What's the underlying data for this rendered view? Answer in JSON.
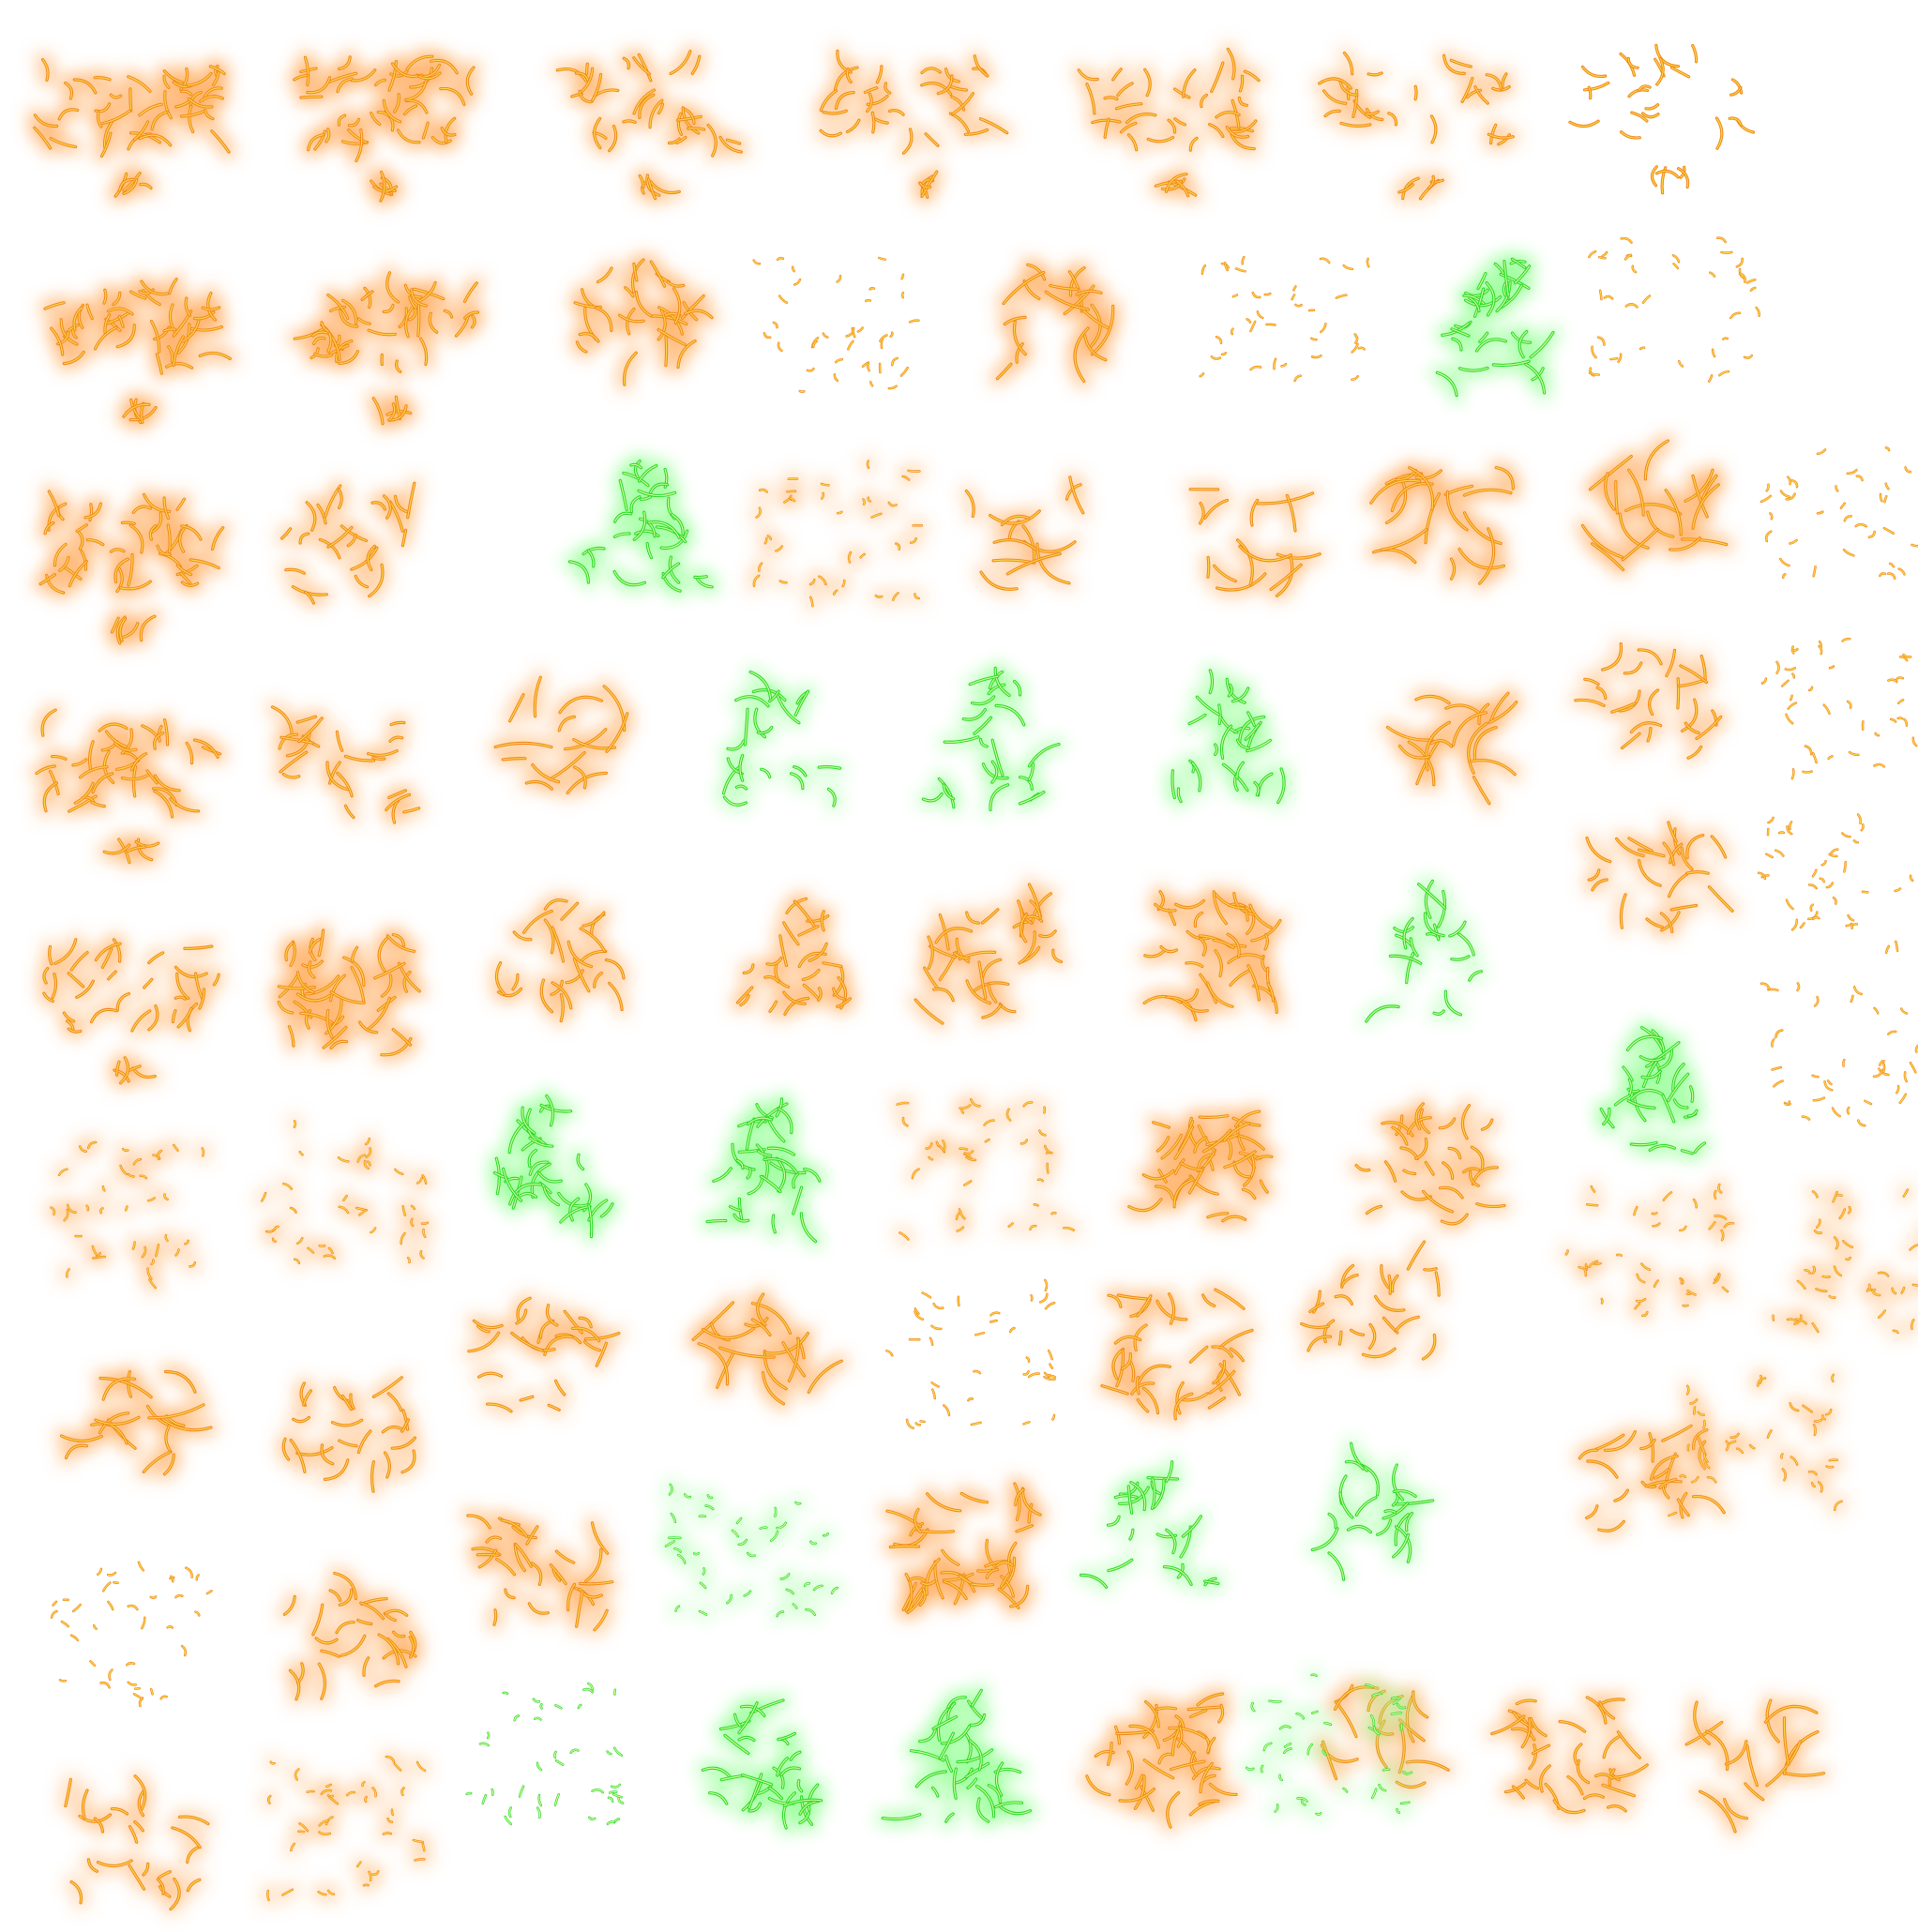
{
  "sheet": {
    "kind": "sprite-sheet",
    "description_text": "",
    "palette": {
      "orange_glow": "#ffb36b",
      "orange_core": "#f08a1c",
      "orange_highlight": "#ffd84a",
      "green_glow": "#9cff9c",
      "green_core": "#2bd92b",
      "green_highlight": "#d8ff9e",
      "background": "#ffffff"
    },
    "sprite_kinds": [
      "word_x2",
      "blob",
      "swoosh",
      "triangle",
      "dense",
      "scatter"
    ],
    "sprites": [
      {
        "kind": "word_x2",
        "color": "orange",
        "density": 1.0,
        "seed": 1
      },
      {
        "kind": "word_x2",
        "color": "orange",
        "density": 1.0,
        "seed": 2
      },
      {
        "kind": "word_x2",
        "color": "orange",
        "density": 0.6,
        "seed": 3
      },
      {
        "kind": "word_x2",
        "color": "orange",
        "density": 0.55,
        "seed": 4
      },
      {
        "kind": "word_x2",
        "color": "orange",
        "density": 0.6,
        "seed": 5
      },
      {
        "kind": "word_x2",
        "color": "orange",
        "density": 0.4,
        "seed": 6
      },
      {
        "kind": "word_x2",
        "color": "orange",
        "density": 0.25,
        "seed": 7
      },
      {
        "kind": "word_x2",
        "color": "orange",
        "density": 1.0,
        "seed": 8
      },
      {
        "kind": "word_x2",
        "color": "orange",
        "density": 1.0,
        "seed": 9
      },
      {
        "kind": "blob",
        "color": "orange",
        "density": 0.9,
        "seed": 10
      },
      {
        "kind": "scatter",
        "color": "orange",
        "density": 0.3,
        "seed": 11
      },
      {
        "kind": "swoosh",
        "color": "orange",
        "density": 1.0,
        "seed": 12
      },
      {
        "kind": "scatter",
        "color": "orange",
        "density": 0.25,
        "seed": 13
      },
      {
        "kind": "triangle",
        "color": "green",
        "density": 1.0,
        "seed": 14
      },
      {
        "kind": "scatter",
        "color": "orange",
        "density": 0.2,
        "seed": 15
      },
      {
        "kind": "word_x2",
        "color": "orange",
        "density": 1.0,
        "seed": 16
      },
      {
        "kind": "blob",
        "color": "orange",
        "density": 0.6,
        "seed": 17
      },
      {
        "kind": "triangle",
        "color": "green",
        "density": 1.0,
        "seed": 18
      },
      {
        "kind": "scatter",
        "color": "orange",
        "density": 0.35,
        "seed": 19
      },
      {
        "kind": "swoosh",
        "color": "orange",
        "density": 0.45,
        "seed": 20
      },
      {
        "kind": "swoosh",
        "color": "orange",
        "density": 0.55,
        "seed": 21
      },
      {
        "kind": "swoosh",
        "color": "orange",
        "density": 1.0,
        "seed": 22
      },
      {
        "kind": "swoosh",
        "color": "orange",
        "density": 1.0,
        "seed": 23
      },
      {
        "kind": "scatter",
        "color": "orange",
        "density": 0.2,
        "seed": 24
      },
      {
        "kind": "word_x2",
        "color": "orange",
        "density": 0.8,
        "seed": 25
      },
      {
        "kind": "blob",
        "color": "orange",
        "density": 0.6,
        "seed": 26
      },
      {
        "kind": "swoosh",
        "color": "orange",
        "density": 0.7,
        "seed": 27
      },
      {
        "kind": "triangle",
        "color": "green",
        "density": 0.45,
        "seed": 28
      },
      {
        "kind": "triangle",
        "color": "green",
        "density": 0.6,
        "seed": 29
      },
      {
        "kind": "triangle",
        "color": "green",
        "density": 0.8,
        "seed": 30
      },
      {
        "kind": "swoosh",
        "color": "orange",
        "density": 0.8,
        "seed": 31
      },
      {
        "kind": "blob",
        "color": "orange",
        "density": 0.5,
        "seed": 32
      },
      {
        "kind": "scatter",
        "color": "orange",
        "density": 0.25,
        "seed": 33
      },
      {
        "kind": "word_x2",
        "color": "orange",
        "density": 0.6,
        "seed": 34
      },
      {
        "kind": "dense",
        "color": "orange",
        "density": 1.0,
        "seed": 35
      },
      {
        "kind": "blob",
        "color": "orange",
        "density": 0.6,
        "seed": 36
      },
      {
        "kind": "blob",
        "color": "orange",
        "density": 0.75,
        "seed": 37
      },
      {
        "kind": "dense",
        "color": "orange",
        "density": 0.7,
        "seed": 38
      },
      {
        "kind": "dense",
        "color": "orange",
        "density": 0.85,
        "seed": 39
      },
      {
        "kind": "triangle",
        "color": "green",
        "density": 0.35,
        "seed": 40
      },
      {
        "kind": "blob",
        "color": "orange",
        "density": 0.5,
        "seed": 41
      },
      {
        "kind": "scatter",
        "color": "orange",
        "density": 0.2,
        "seed": 42
      },
      {
        "kind": "scatter",
        "color": "orange",
        "density": 0.5,
        "seed": 43
      },
      {
        "kind": "scatter",
        "color": "orange",
        "density": 0.35,
        "seed": 44
      },
      {
        "kind": "triangle",
        "color": "green",
        "density": 1.0,
        "seed": 45
      },
      {
        "kind": "triangle",
        "color": "green",
        "density": 1.0,
        "seed": 46
      },
      {
        "kind": "scatter",
        "color": "orange",
        "density": 0.4,
        "seed": 47
      },
      {
        "kind": "dense",
        "color": "orange",
        "density": 1.0,
        "seed": 48
      },
      {
        "kind": "blob",
        "color": "orange",
        "density": 0.8,
        "seed": 49
      },
      {
        "kind": "triangle",
        "color": "green",
        "density": 1.0,
        "seed": 50
      },
      {
        "kind": "scatter",
        "color": "orange",
        "density": 0.2,
        "seed": 51
      },
      {
        "kind": "scatter",
        "color": "orange",
        "density": 0.4,
        "seed": 52
      },
      {
        "kind": "swoosh",
        "color": "orange",
        "density": 0.9,
        "seed": 53
      },
      {
        "kind": "blob",
        "color": "orange",
        "density": 0.55,
        "seed": 54
      },
      {
        "kind": "blob",
        "color": "orange",
        "density": 0.55,
        "seed": 55
      },
      {
        "kind": "swoosh",
        "color": "orange",
        "density": 0.9,
        "seed": 56
      },
      {
        "kind": "scatter",
        "color": "orange",
        "density": 0.2,
        "seed": 57
      },
      {
        "kind": "dense",
        "color": "orange",
        "density": 0.65,
        "seed": 58
      },
      {
        "kind": "blob",
        "color": "orange",
        "density": 0.5,
        "seed": 59
      },
      {
        "kind": "scatter",
        "color": "orange",
        "density": 0.35,
        "seed": 60
      },
      {
        "kind": "blob",
        "color": "orange",
        "density": 0.6,
        "seed": 61
      },
      {
        "kind": "scatter",
        "color": "orange",
        "density": 0.25,
        "seed": 62
      },
      {
        "kind": "blob",
        "color": "orange",
        "density": 0.7,
        "seed": 63
      },
      {
        "kind": "blob",
        "color": "orange",
        "density": 0.8,
        "seed": 64
      },
      {
        "kind": "scatter",
        "color": "green",
        "density": 0.35,
        "seed": 65
      },
      {
        "kind": "dense",
        "color": "orange",
        "density": 1.0,
        "seed": 66
      },
      {
        "kind": "triangle",
        "color": "green",
        "density": 0.5,
        "seed": 67
      },
      {
        "kind": "triangle",
        "color": "green",
        "density": 0.45,
        "seed": 68
      },
      {
        "kind": "scatter",
        "color": "orange",
        "density": 0.4,
        "seed": 69
      },
      {
        "kind": "blob",
        "color": "orange",
        "density": 0.5,
        "seed": 70
      },
      {
        "kind": "scatter",
        "color": "orange",
        "density": 0.4,
        "seed": 71
      },
      {
        "kind": "scatter",
        "color": "green",
        "density": 0.3,
        "seed": 72
      },
      {
        "kind": "triangle",
        "color": "green",
        "density": 1.0,
        "seed": 73
      },
      {
        "kind": "triangle",
        "color": "green",
        "density": 1.0,
        "seed": 74
      },
      {
        "kind": "dense",
        "color": "orange",
        "density": 0.85,
        "seed": 75
      },
      {
        "kind": "swoosh",
        "color": "orange",
        "density": 0.7,
        "seed": 76
      },
      {
        "kind": "dense",
        "color": "orange",
        "density": 0.6,
        "seed": 77
      },
      {
        "kind": "swoosh",
        "color": "orange",
        "density": 0.6,
        "seed": 78
      },
      {
        "kind": "scatter",
        "color": "green",
        "density": 0.35,
        "seed": 79
      }
    ]
  }
}
